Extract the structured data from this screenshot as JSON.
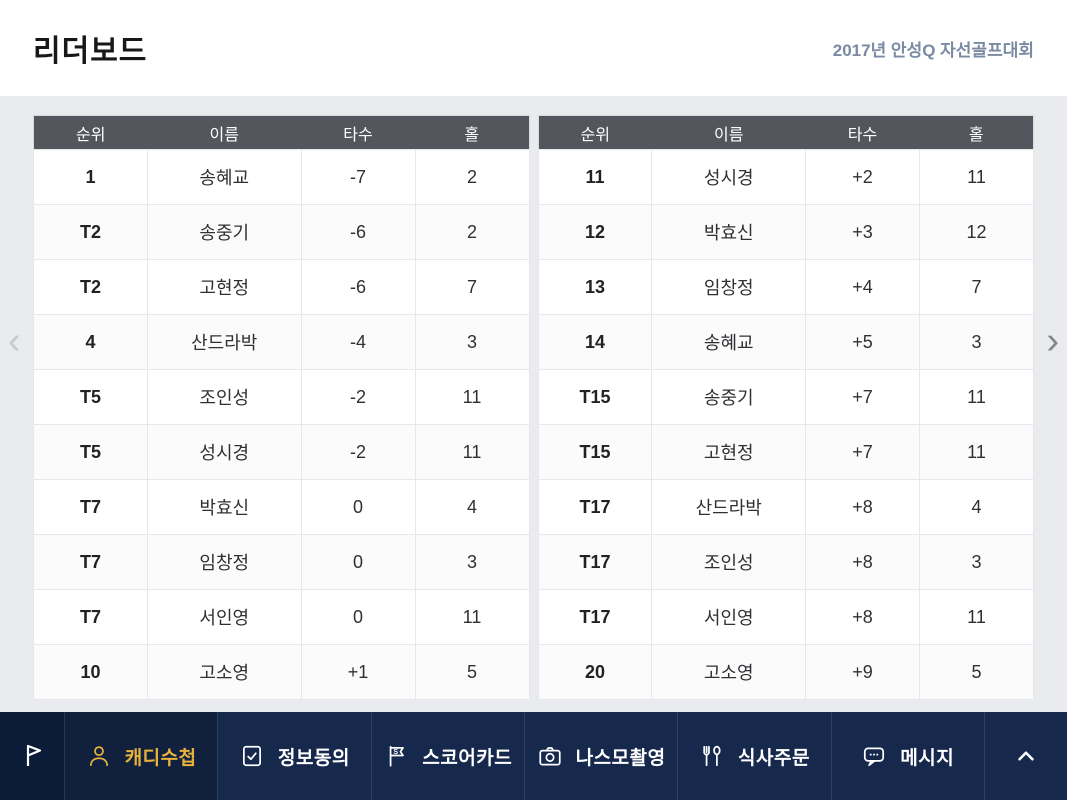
{
  "header": {
    "title": "리더보드",
    "subtitle": "2017년 안성Q 자선골프대회"
  },
  "columns": [
    "순위",
    "이름",
    "타수",
    "홀"
  ],
  "left_rows": [
    [
      "1",
      "송혜교",
      "-7",
      "2"
    ],
    [
      "T2",
      "송중기",
      "-6",
      "2"
    ],
    [
      "T2",
      "고현정",
      "-6",
      "7"
    ],
    [
      "4",
      "산드라박",
      "-4",
      "3"
    ],
    [
      "T5",
      "조인성",
      "-2",
      "11"
    ],
    [
      "T5",
      "성시경",
      "-2",
      "11"
    ],
    [
      "T7",
      "박효신",
      "0",
      "4"
    ],
    [
      "T7",
      "임창정",
      "0",
      "3"
    ],
    [
      "T7",
      "서인영",
      "0",
      "11"
    ],
    [
      "10",
      "고소영",
      "+1",
      "5"
    ]
  ],
  "right_rows": [
    [
      "11",
      "성시경",
      "+2",
      "11"
    ],
    [
      "12",
      "박효신",
      "+3",
      "12"
    ],
    [
      "13",
      "임창정",
      "+4",
      "7"
    ],
    [
      "14",
      "송혜교",
      "+5",
      "3"
    ],
    [
      "T15",
      "송중기",
      "+7",
      "11"
    ],
    [
      "T15",
      "고현정",
      "+7",
      "11"
    ],
    [
      "T17",
      "산드라박",
      "+8",
      "4"
    ],
    [
      "T17",
      "조인성",
      "+8",
      "3"
    ],
    [
      "T17",
      "서인영",
      "+8",
      "11"
    ],
    [
      "20",
      "고소영",
      "+9",
      "5"
    ]
  ],
  "pager": {
    "prev": "‹",
    "next": "›"
  },
  "nav": {
    "scorecard_letter": "S",
    "items": [
      {
        "label": "캐디수첩",
        "icon": "person-icon",
        "active": true
      },
      {
        "label": "정보동의",
        "icon": "consent-check-icon",
        "active": false
      },
      {
        "label": "스코어카드",
        "icon": "scorecard-flag-icon",
        "active": false
      },
      {
        "label": "나스모촬영",
        "icon": "camera-icon",
        "active": false
      },
      {
        "label": "식사주문",
        "icon": "meal-cutlery-icon",
        "active": false
      },
      {
        "label": "메시지",
        "icon": "message-bubble-icon",
        "active": false
      }
    ]
  },
  "colors": {
    "page_background": "#e9ebee",
    "table_header_background": "#54565e",
    "nav_background": "#16294d",
    "nav_logo_background": "#0c1c38",
    "nav_active_text": "#e8b33c",
    "subtitle_text": "#7b8aa3"
  }
}
